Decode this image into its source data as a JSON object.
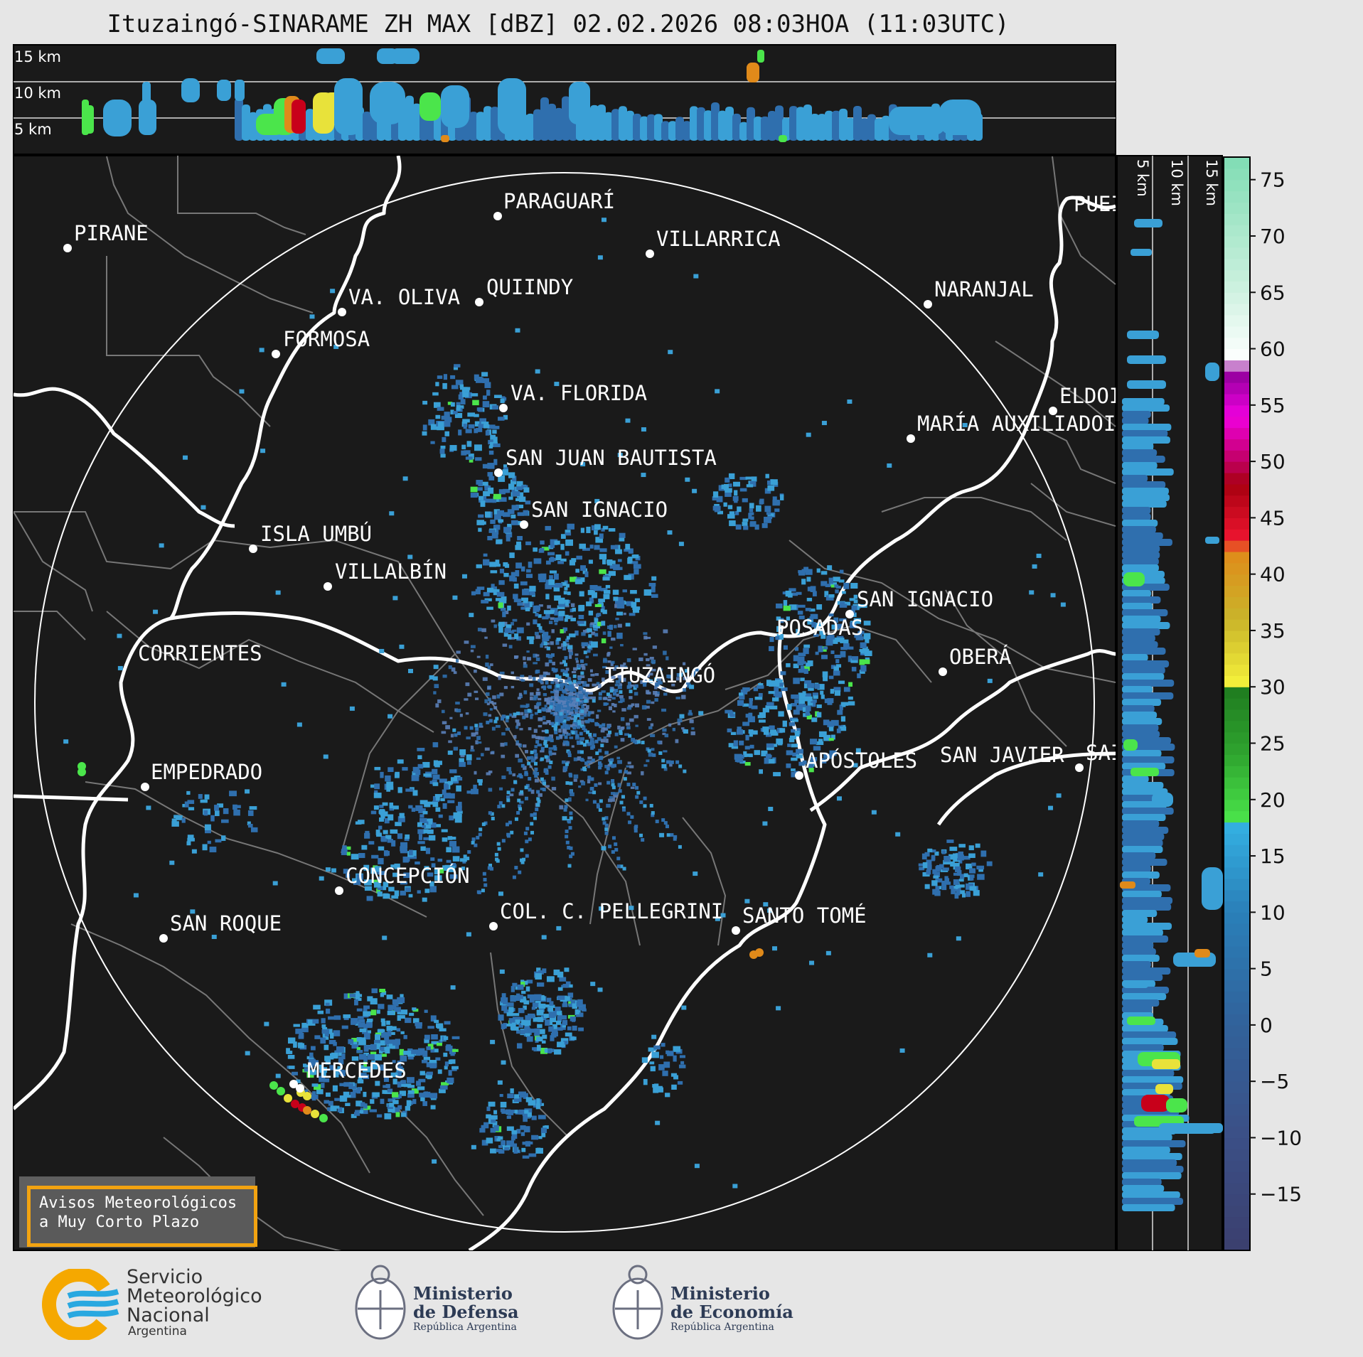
{
  "title": "Ituzaingó-SINARAME ZH MAX [dBZ] 02.02.2026 08:03HOA (11:03UTC)",
  "profile_top": {
    "labels": [
      "15 km",
      "10 km",
      "5 km"
    ]
  },
  "profile_side": {
    "labels": [
      "5 km",
      "10 km",
      "15 km"
    ]
  },
  "colorbar": {
    "ticks": [
      "75",
      "70",
      "65",
      "60",
      "55",
      "50",
      "45",
      "40",
      "35",
      "30",
      "25",
      "20",
      "15",
      "10",
      "5",
      "0",
      "−5",
      "−10",
      "−15"
    ],
    "tick_values": [
      75,
      70,
      65,
      60,
      55,
      50,
      45,
      40,
      35,
      30,
      25,
      20,
      15,
      10,
      5,
      0,
      -5,
      -10,
      -15
    ],
    "range": [
      -20,
      77
    ],
    "stops": [
      {
        "v": -20,
        "c": "#3b3f6e"
      },
      {
        "v": -10,
        "c": "#3b4f86"
      },
      {
        "v": 0,
        "c": "#31629a"
      },
      {
        "v": 10,
        "c": "#2a7fb8"
      },
      {
        "v": 17.5,
        "c": "#33aee0"
      },
      {
        "v": 18,
        "c": "#4be54b"
      },
      {
        "v": 24,
        "c": "#2fa52f"
      },
      {
        "v": 30,
        "c": "#1f7a1f"
      },
      {
        "v": 30.5,
        "c": "#f2ee3a"
      },
      {
        "v": 36,
        "c": "#c9b42a"
      },
      {
        "v": 42,
        "c": "#e08a1a"
      },
      {
        "v": 43,
        "c": "#ee1530"
      },
      {
        "v": 48,
        "c": "#a80010"
      },
      {
        "v": 50,
        "c": "#c00060"
      },
      {
        "v": 54,
        "c": "#f000e0"
      },
      {
        "v": 58,
        "c": "#90009a"
      },
      {
        "v": 59,
        "c": "#ffffff"
      },
      {
        "v": 66,
        "c": "#c8f0dc"
      },
      {
        "v": 77,
        "c": "#80dcb4"
      }
    ]
  },
  "cities": [
    {
      "name": "PIRANE",
      "dot": true
    },
    {
      "name": "PARAGUARÍ",
      "dot": true
    },
    {
      "name": "VILLARRICA",
      "dot": true
    },
    {
      "name": "VA. OLIVA",
      "dot": true
    },
    {
      "name": "QUIINDY",
      "dot": true
    },
    {
      "name": "NARANJAL",
      "dot": true
    },
    {
      "name": "FORMOSA",
      "dot": true
    },
    {
      "name": "VA. FLORIDA",
      "dot": true
    },
    {
      "name": "ELDOI",
      "dot": true
    },
    {
      "name": "MARÍA AUXILIADOI",
      "dot": true
    },
    {
      "name": "SAN JUAN BAUTISTA",
      "dot": true
    },
    {
      "name": "SAN IGNACIO",
      "dot": true
    },
    {
      "name": "ISLA UMBÚ",
      "dot": true
    },
    {
      "name": "VILLALBÍN",
      "dot": true
    },
    {
      "name": "SAN IGNACIO",
      "dot": true
    },
    {
      "name": "POSADAS",
      "dot": false
    },
    {
      "name": "CORRIENTES",
      "dot": false
    },
    {
      "name": "ITUZAINGÓ",
      "dot": false
    },
    {
      "name": "OBERÁ",
      "dot": true
    },
    {
      "name": "EMPEDRADO",
      "dot": true
    },
    {
      "name": "APÓSTOLES",
      "dot": true
    },
    {
      "name": "SAN JAVIER",
      "dot": false
    },
    {
      "name": "SAI",
      "dot": true
    },
    {
      "name": "CONCEPCIÓN",
      "dot": true
    },
    {
      "name": "SAN ROQUE",
      "dot": true
    },
    {
      "name": "COL. C. PELLEGRINI",
      "dot": true
    },
    {
      "name": "SANTO TOMÉ",
      "dot": true
    },
    {
      "name": "MERCEDES",
      "dot": true
    },
    {
      "name": "PUEI",
      "dot": false
    }
  ],
  "aviso": {
    "line1": "Avisos Meteorológicos",
    "line2": "a Muy Corto Plazo"
  },
  "logos": {
    "smn": {
      "line1": "Servicio",
      "line2": "Meteorológico",
      "line3": "Nacional",
      "line4": "Argentina"
    },
    "defensa": {
      "line1": "Ministerio",
      "line2": "de Defensa",
      "line3": "República Argentina"
    },
    "economia": {
      "line1": "Ministerio",
      "line2": "de Economía",
      "line3": "República Argentina"
    }
  },
  "colors": {
    "map_bg": "#1a1a1a",
    "page_bg": "#e6e6e6",
    "echo_base": "#2f6fae",
    "echo_light": "#3aa0d6"
  }
}
